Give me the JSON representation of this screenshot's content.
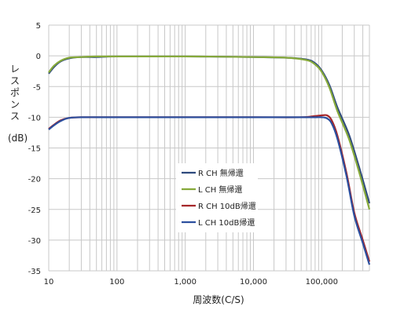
{
  "chart_data": {
    "type": "line",
    "xlabel": "周波数(C/S)",
    "ylabel": "レスポンス",
    "ylabel_unit": "(dB)",
    "x_scale": "log",
    "xlim": [
      10,
      500000
    ],
    "ylim": [
      -35,
      5
    ],
    "x_ticks": [
      {
        "value": 10,
        "label": "10"
      },
      {
        "value": 100,
        "label": "100"
      },
      {
        "value": 1000,
        "label": "1,000"
      },
      {
        "value": 10000,
        "label": "10,000"
      },
      {
        "value": 100000,
        "label": "100,000"
      }
    ],
    "y_ticks": [
      {
        "value": 5,
        "label": "5"
      },
      {
        "value": 0,
        "label": "0"
      },
      {
        "value": -5,
        "label": "-5"
      },
      {
        "value": -10,
        "label": "-10"
      },
      {
        "value": -15,
        "label": "-15"
      },
      {
        "value": -20,
        "label": "-20"
      },
      {
        "value": -25,
        "label": "-25"
      },
      {
        "value": -30,
        "label": "-30"
      },
      {
        "value": -35,
        "label": "-35"
      }
    ],
    "grid": true,
    "legend_position": "center-right",
    "series": [
      {
        "name": "R CH 無帰還",
        "color": "#2e4a7d",
        "x": [
          10,
          12,
          15,
          20,
          30,
          50,
          100,
          1000,
          10000,
          30000,
          60000,
          80000,
          100000,
          130000,
          170000,
          250000,
          350000,
          500000
        ],
        "y": [
          -2.9,
          -1.8,
          -0.9,
          -0.4,
          -0.2,
          -0.2,
          -0.1,
          -0.1,
          -0.2,
          -0.3,
          -0.6,
          -1.2,
          -2.4,
          -4.8,
          -8.4,
          -12.8,
          -18,
          -24
        ]
      },
      {
        "name": "L CH 無帰還",
        "color": "#86a93a",
        "x": [
          10,
          12,
          15,
          20,
          30,
          50,
          100,
          1000,
          10000,
          30000,
          60000,
          80000,
          100000,
          130000,
          170000,
          250000,
          350000,
          500000
        ],
        "y": [
          -2.7,
          -1.6,
          -0.8,
          -0.3,
          -0.2,
          -0.1,
          -0.1,
          -0.1,
          -0.2,
          -0.3,
          -0.7,
          -1.4,
          -2.6,
          -5.2,
          -9,
          -13.5,
          -18.8,
          -25
        ]
      },
      {
        "name": "R CH 10dB帰還",
        "color": "#a5262a",
        "x": [
          10,
          12,
          15,
          20,
          30,
          100,
          1000,
          10000,
          50000,
          80000,
          100000,
          120000,
          140000,
          170000,
          230000,
          300000,
          400000,
          500000
        ],
        "y": [
          -11.9,
          -11.2,
          -10.5,
          -10.1,
          -10,
          -10,
          -10,
          -10,
          -10,
          -9.8,
          -9.7,
          -9.7,
          -10.5,
          -13,
          -19,
          -25.5,
          -30,
          -33.5
        ]
      },
      {
        "name": "L CH 10dB帰還",
        "color": "#2c4f9e",
        "x": [
          10,
          12,
          15,
          20,
          30,
          100,
          1000,
          10000,
          50000,
          80000,
          100000,
          120000,
          140000,
          170000,
          230000,
          300000,
          400000,
          500000
        ],
        "y": [
          -12,
          -11.3,
          -10.6,
          -10.1,
          -10,
          -10,
          -10,
          -10,
          -10,
          -10,
          -10,
          -10.2,
          -11,
          -13.5,
          -19.5,
          -26,
          -30.5,
          -34
        ]
      }
    ]
  }
}
